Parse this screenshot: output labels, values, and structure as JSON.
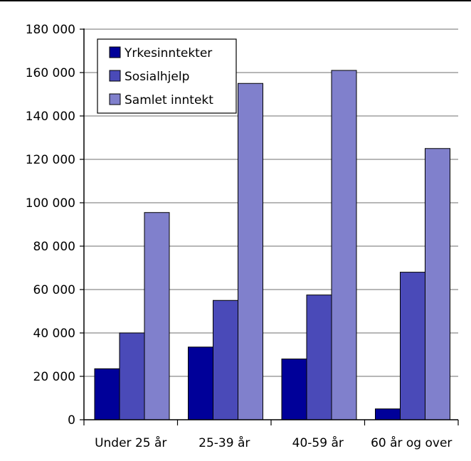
{
  "chart_data": {
    "type": "bar",
    "categories": [
      "Under 25 år",
      "25-39 år",
      "40-59 år",
      "60 år og over"
    ],
    "series": [
      {
        "name": "Yrkesinntekter",
        "color": "#000099",
        "values": [
          23500,
          33500,
          28000,
          5000
        ]
      },
      {
        "name": "Sosialhjelp",
        "color": "#4A4AB8",
        "values": [
          40000,
          55000,
          57500,
          68000
        ]
      },
      {
        "name": "Samlet inntekt",
        "color": "#8080CC",
        "values": [
          95500,
          155000,
          161000,
          125000
        ]
      }
    ],
    "y_ticks": [
      "0",
      "20 000",
      "40 000",
      "60 000",
      "80 000",
      "100 000",
      "120 000",
      "140 000",
      "160 000",
      "180 000"
    ],
    "ylim": [
      0,
      180000
    ],
    "grid": true,
    "legend_position": "top-left"
  }
}
